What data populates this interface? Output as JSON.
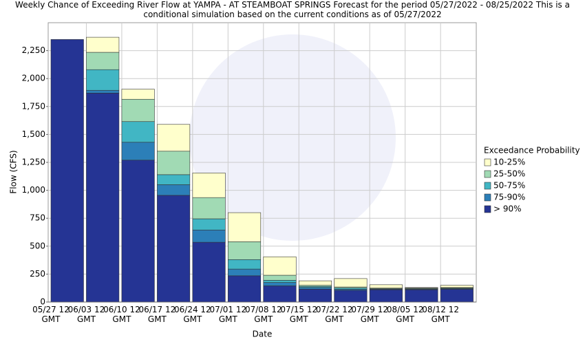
{
  "chart_data": {
    "type": "stacked-bar",
    "title": "Weekly Chance of Exceeding River Flow at YAMPA - AT STEAMBOAT SPRINGS Forecast for the period 05/27/2022 - 08/25/2022 This is a conditional simulation based on the current conditions as of 05/27/2022",
    "xlabel": "Date",
    "ylabel": "Flow (CFS)",
    "legend_title": "Exceedance Probability",
    "legend": "right",
    "grid": true,
    "categories": [
      "05/27 12 GMT",
      "06/03 12 GMT",
      "06/10 12 GMT",
      "06/17 12 GMT",
      "06/24 12 GMT",
      "07/01 12 GMT",
      "07/08 12 GMT",
      "07/15 12 GMT",
      "07/22 12 GMT",
      "07/29 12 GMT",
      "08/05 12 GMT",
      "08/12 12 GMT"
    ],
    "series": [
      {
        "name": "> 90%",
        "color": "#253494",
        "values": [
          2350,
          1870,
          1270,
          955,
          535,
          235,
          145,
          115,
          105,
          110,
          110,
          115
        ]
      },
      {
        "name": "75-90%",
        "color": "#2c7fb8",
        "values": [
          0,
          25,
          160,
          95,
          110,
          60,
          30,
          15,
          10,
          5,
          5,
          5
        ]
      },
      {
        "name": "50-75%",
        "color": "#41b6c4",
        "values": [
          0,
          185,
          185,
          90,
          100,
          85,
          20,
          10,
          10,
          5,
          5,
          5
        ]
      },
      {
        "name": "25-50%",
        "color": "#a1dab4",
        "values": [
          0,
          155,
          200,
          210,
          190,
          160,
          45,
          10,
          10,
          5,
          5,
          5
        ]
      },
      {
        "name": "10-25%",
        "color": "#ffffcc",
        "values": [
          0,
          135,
          90,
          240,
          220,
          260,
          165,
          40,
          75,
          30,
          5,
          20
        ]
      }
    ],
    "ylim": [
      0,
      2500
    ],
    "yticks": [
      0,
      250,
      500,
      750,
      {
        "value": 1000,
        "label": "1,000"
      },
      {
        "value": 1250,
        "label": "1,250"
      },
      {
        "value": 1500,
        "label": "1,500"
      },
      {
        "value": 1750,
        "label": "1,750"
      },
      {
        "value": 2000,
        "label": "2,000"
      },
      {
        "value": 2250,
        "label": "2,250"
      }
    ]
  }
}
